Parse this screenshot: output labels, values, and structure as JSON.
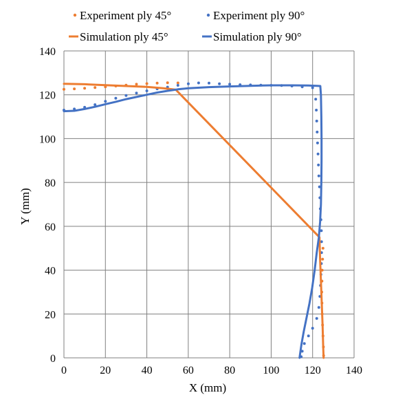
{
  "chart_data": {
    "type": "line",
    "title": "",
    "xlabel": "X  (mm)",
    "ylabel": "Y (mm)",
    "xlim": [
      0,
      140
    ],
    "ylim": [
      0,
      140
    ],
    "xticks": [
      0,
      20,
      40,
      60,
      80,
      100,
      120,
      140
    ],
    "yticks": [
      0,
      20,
      40,
      60,
      80,
      100,
      120,
      140
    ],
    "grid": true,
    "legend_position": "top",
    "series": [
      {
        "name": "Experiment ply 45°",
        "style": "dotted",
        "color": "#ED7D31",
        "points": [
          [
            0,
            122.5
          ],
          [
            5,
            122.7
          ],
          [
            10,
            123
          ],
          [
            15,
            123.3
          ],
          [
            20,
            123.6
          ],
          [
            25,
            124
          ],
          [
            30,
            124.4
          ],
          [
            35,
            124.8
          ],
          [
            40,
            125.1
          ],
          [
            45,
            125.3
          ],
          [
            50,
            125.5
          ],
          [
            55,
            125.4
          ],
          [
            125,
            50
          ],
          [
            124.8,
            45
          ],
          [
            124.6,
            40
          ],
          [
            124.5,
            35
          ],
          [
            124.4,
            30
          ],
          [
            124.5,
            25
          ],
          [
            124.6,
            20
          ],
          [
            124.8,
            15
          ],
          [
            125,
            10
          ],
          [
            125.2,
            5
          ],
          [
            125.3,
            1
          ]
        ]
      },
      {
        "name": "Experiment ply 90°",
        "style": "dotted",
        "color": "#4472C4",
        "points": [
          [
            0,
            113
          ],
          [
            5,
            113.5
          ],
          [
            10,
            114.3
          ],
          [
            15,
            115.5
          ],
          [
            20,
            117
          ],
          [
            25,
            118.4
          ],
          [
            30,
            119.7
          ],
          [
            35,
            120.8
          ],
          [
            40,
            121.8
          ],
          [
            45,
            122.7
          ],
          [
            50,
            123.5
          ],
          [
            55,
            124.3
          ],
          [
            60,
            125
          ],
          [
            65,
            125.4
          ],
          [
            70,
            125.3
          ],
          [
            75,
            125
          ],
          [
            80,
            124.8
          ],
          [
            85,
            124.6
          ],
          [
            90,
            124.5
          ],
          [
            95,
            124.4
          ],
          [
            100,
            124.3
          ],
          [
            105,
            124.2
          ],
          [
            110,
            124
          ],
          [
            115,
            123.6
          ],
          [
            120,
            123.2
          ],
          [
            121.5,
            118
          ],
          [
            121.8,
            113
          ],
          [
            122,
            108
          ],
          [
            122.2,
            103
          ],
          [
            122.4,
            98
          ],
          [
            122.6,
            93
          ],
          [
            122.8,
            88
          ],
          [
            123,
            83
          ],
          [
            123.3,
            78
          ],
          [
            123.5,
            73
          ],
          [
            123.7,
            68
          ],
          [
            124,
            63
          ],
          [
            124.2,
            58
          ],
          [
            124.3,
            53
          ],
          [
            124.3,
            48
          ],
          [
            124.2,
            43
          ],
          [
            124,
            38
          ],
          [
            123.8,
            33
          ],
          [
            123.5,
            28
          ],
          [
            123,
            23
          ],
          [
            122,
            18
          ],
          [
            120,
            13.5
          ],
          [
            118,
            10
          ],
          [
            116,
            6.5
          ],
          [
            115,
            3
          ],
          [
            114.5,
            0.5
          ]
        ]
      },
      {
        "name": "Simulation ply 45°",
        "style": "solid",
        "color": "#ED7D31",
        "points": [
          [
            0,
            125
          ],
          [
            10,
            124.8
          ],
          [
            20,
            124.4
          ],
          [
            30,
            124
          ],
          [
            40,
            123.6
          ],
          [
            48,
            123
          ],
          [
            54,
            122.3
          ],
          [
            123.3,
            55
          ],
          [
            123.6,
            45
          ],
          [
            124,
            35
          ],
          [
            124.4,
            25
          ],
          [
            124.8,
            15
          ],
          [
            125.1,
            5
          ],
          [
            125.3,
            0
          ]
        ]
      },
      {
        "name": "Simulation ply 90°",
        "style": "solid",
        "color": "#4472C4",
        "points": [
          [
            0,
            112.5
          ],
          [
            5,
            112.7
          ],
          [
            10,
            113.5
          ],
          [
            15,
            114.5
          ],
          [
            20,
            115.7
          ],
          [
            25,
            116.8
          ],
          [
            30,
            118
          ],
          [
            35,
            119
          ],
          [
            40,
            120
          ],
          [
            45,
            121
          ],
          [
            50,
            121.8
          ],
          [
            55,
            122.5
          ],
          [
            60,
            123
          ],
          [
            70,
            123.5
          ],
          [
            80,
            123.8
          ],
          [
            90,
            124.1
          ],
          [
            100,
            124.3
          ],
          [
            110,
            124.3
          ],
          [
            118,
            124.2
          ],
          [
            122,
            124.1
          ],
          [
            123.7,
            124
          ],
          [
            124,
            120
          ],
          [
            124.2,
            110
          ],
          [
            124.3,
            100
          ],
          [
            124.3,
            90
          ],
          [
            124.2,
            80
          ],
          [
            124,
            70
          ],
          [
            123.6,
            62
          ],
          [
            123,
            55
          ],
          [
            122,
            48
          ],
          [
            121,
            40
          ],
          [
            119.8,
            32
          ],
          [
            118.5,
            25
          ],
          [
            117,
            18
          ],
          [
            115.7,
            12
          ],
          [
            114.6,
            6
          ],
          [
            114,
            2
          ],
          [
            113.7,
            0
          ]
        ]
      }
    ]
  }
}
